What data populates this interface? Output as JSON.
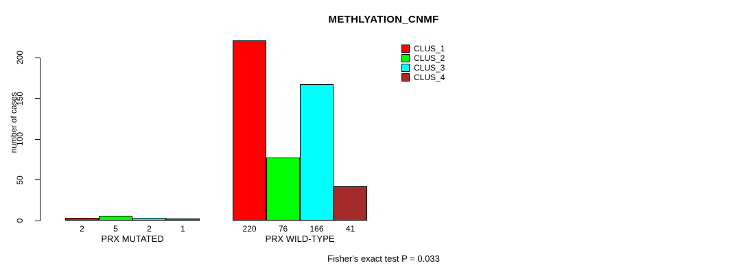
{
  "chart_data": {
    "type": "bar",
    "title": "METHLYATION_CNMF",
    "ylabel": "number of cases",
    "xlabel": "",
    "categories": [
      "PRX MUTATED",
      "PRX WILD-TYPE"
    ],
    "series": [
      {
        "name": "CLUS_1",
        "color": "#ff0000",
        "values": [
          2,
          220
        ]
      },
      {
        "name": "CLUS_2",
        "color": "#00ff00",
        "values": [
          5,
          76
        ]
      },
      {
        "name": "CLUS_3",
        "color": "#00ffff",
        "values": [
          2,
          166
        ]
      },
      {
        "name": "CLUS_4",
        "color": "#a52a2a",
        "values": [
          1,
          41
        ]
      }
    ],
    "yticks": [
      0,
      50,
      100,
      150,
      200
    ],
    "ylim": [
      0,
      200
    ],
    "grid": false,
    "legend_position": "top-right",
    "bar_value_labels_shown": true,
    "annotation": "Fisher's exact test P = 0.033"
  }
}
